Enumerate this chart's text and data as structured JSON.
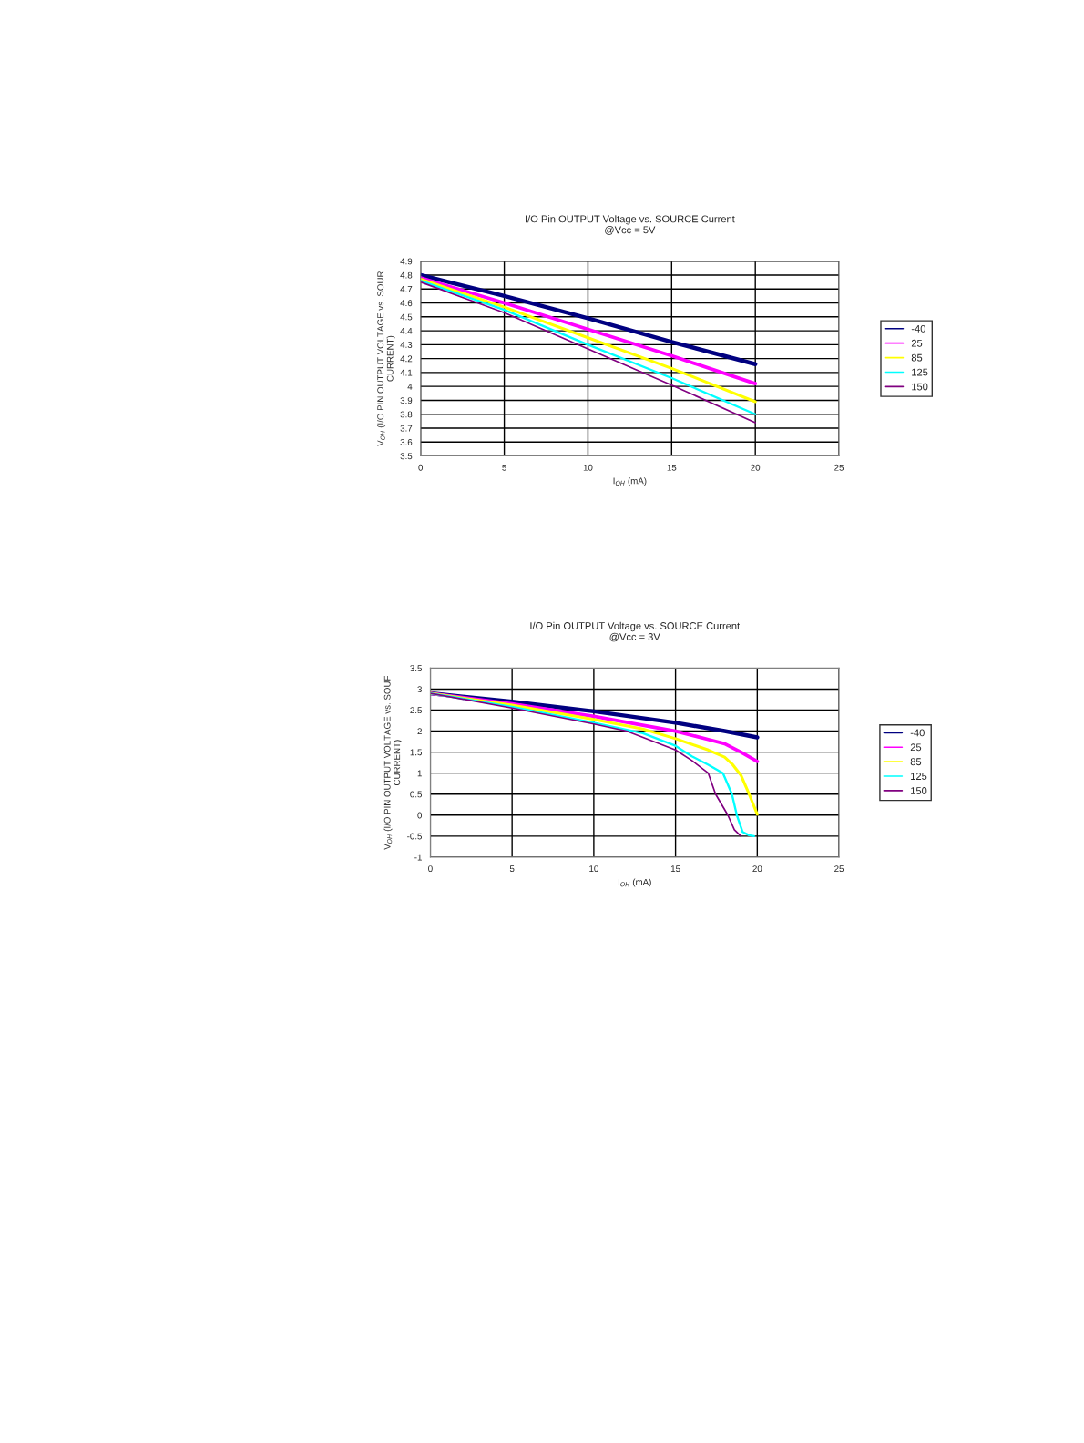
{
  "chart_data": [
    {
      "type": "line",
      "title": "I/O Pin OUTPUT Voltage vs. SOURCE Current",
      "subtitle": "@Vcc = 5V",
      "xlabel": "I$_{OH}$ (mA)",
      "ylabel": "V$_{OH}$ (I/O PIN OUTPUT VOLTAGE vs. SOUR\nCURRENT)",
      "xlim": [
        0,
        25
      ],
      "xticks": [
        0,
        5,
        10,
        15,
        20,
        25
      ],
      "ylim": [
        3.5,
        4.9
      ],
      "yticks": [
        3.5,
        3.6,
        3.7,
        3.8,
        3.9,
        4,
        4.1,
        4.2,
        4.3,
        4.4,
        4.5,
        4.6,
        4.7,
        4.8,
        4.9
      ],
      "grid": true,
      "legend": "right",
      "series": [
        {
          "name": "-40",
          "color": "#000080",
          "x": [
            0,
            5,
            10,
            15,
            20
          ],
          "values": [
            4.8,
            4.65,
            4.49,
            4.32,
            4.16
          ]
        },
        {
          "name": "25",
          "color": "#ff00ff",
          "x": [
            0,
            5,
            10,
            15,
            20
          ],
          "values": [
            4.78,
            4.6,
            4.41,
            4.22,
            4.02
          ]
        },
        {
          "name": "85",
          "color": "#ffff00",
          "x": [
            0,
            5,
            10,
            15,
            20
          ],
          "values": [
            4.77,
            4.57,
            4.35,
            4.13,
            3.89
          ]
        },
        {
          "name": "125",
          "color": "#00ffff",
          "x": [
            0,
            5,
            10,
            15,
            20
          ],
          "values": [
            4.76,
            4.55,
            4.3,
            4.06,
            3.8
          ]
        },
        {
          "name": "150",
          "color": "#800080",
          "x": [
            0,
            5,
            10,
            15,
            20
          ],
          "values": [
            4.75,
            4.53,
            4.27,
            4.01,
            3.74
          ]
        }
      ]
    },
    {
      "type": "line",
      "title": "I/O Pin OUTPUT Voltage vs. SOURCE Current",
      "subtitle": "@Vcc = 3V",
      "xlabel": "I$_{OH}$ (mA)",
      "ylabel": "V$_{OH}$ (I/O PIN OUTPUT VOLTAGE vs. SOUF\nCURRENT)",
      "xlim": [
        0,
        25
      ],
      "xticks": [
        0,
        5,
        10,
        15,
        20,
        25
      ],
      "ylim": [
        -1,
        3.5
      ],
      "yticks": [
        -1,
        -0.5,
        0,
        0.5,
        1,
        1.5,
        2,
        2.5,
        3,
        3.5
      ],
      "grid": true,
      "legend": "right",
      "series": [
        {
          "name": "-40",
          "color": "#000080",
          "x": [
            0,
            5,
            10,
            15,
            18,
            20
          ],
          "values": [
            2.9,
            2.7,
            2.47,
            2.2,
            2.0,
            1.85
          ]
        },
        {
          "name": "25",
          "color": "#ff00ff",
          "x": [
            0,
            5,
            10,
            15,
            17,
            18,
            19,
            20
          ],
          "values": [
            2.9,
            2.65,
            2.35,
            2.0,
            1.8,
            1.7,
            1.5,
            1.28
          ]
        },
        {
          "name": "85",
          "color": "#ffff00",
          "x": [
            0,
            5,
            10,
            13,
            15,
            17,
            18,
            18.5,
            19,
            19.5,
            20
          ],
          "values": [
            2.9,
            2.62,
            2.28,
            2.05,
            1.82,
            1.55,
            1.38,
            1.2,
            0.95,
            0.5,
            0.02
          ]
        },
        {
          "name": "125",
          "color": "#00ffff",
          "x": [
            0,
            5,
            10,
            13,
            15,
            16,
            17,
            17.9,
            18.45,
            18.75,
            19.1,
            19.5,
            19.8
          ],
          "values": [
            2.9,
            2.58,
            2.2,
            1.95,
            1.65,
            1.4,
            1.2,
            1.0,
            0.5,
            0.0,
            -0.4,
            -0.48,
            -0.5
          ]
        },
        {
          "name": "150",
          "color": "#800080",
          "x": [
            0,
            5,
            10,
            12,
            15,
            16,
            17,
            17.45,
            18.2,
            18.6,
            19
          ],
          "values": [
            2.9,
            2.55,
            2.17,
            2.0,
            1.55,
            1.3,
            1.0,
            0.5,
            0.0,
            -0.35,
            -0.5
          ]
        }
      ]
    }
  ]
}
